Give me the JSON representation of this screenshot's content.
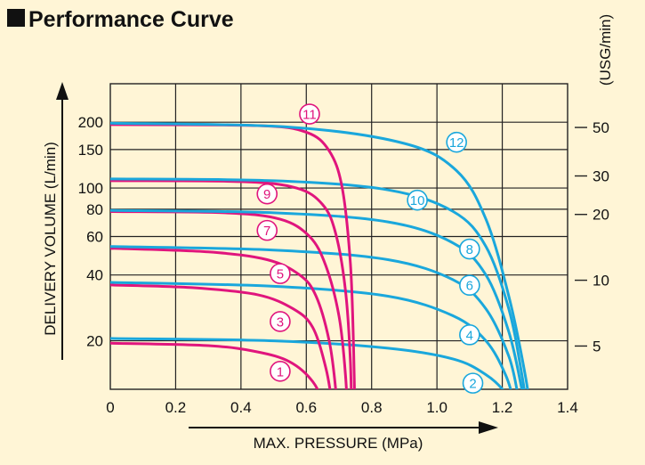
{
  "title": "Performance Curve",
  "chart_data": {
    "type": "line",
    "title": "Performance Curve",
    "xlabel": "MAX. PRESSURE (MPa)",
    "ylabel": "DELIVERY VOLUME (L/min)",
    "ylabel_right": "(USG/min)",
    "xlim": [
      0,
      1.4
    ],
    "ylim": [
      12,
      300
    ],
    "y_scale": "log",
    "grid": true,
    "x_ticks": [
      "0",
      "0.2",
      "0.4",
      "0.6",
      "0.8",
      "1.0",
      "1.2",
      "1.4"
    ],
    "y_ticks": [
      "20",
      "40",
      "60",
      "80",
      "100",
      "150",
      "200"
    ],
    "y_ticks_right": [
      "5",
      "10",
      "20",
      "30",
      "50"
    ],
    "colors": {
      "odd": "#e0157d",
      "even": "#1aa7dc",
      "grid": "#222222",
      "background": "#fff5d6"
    },
    "series": [
      {
        "name": "1",
        "color": "#e0157d",
        "x": [
          0,
          0.3,
          0.45,
          0.55,
          0.62,
          0.655,
          0.67,
          0.675
        ],
        "y": [
          19.5,
          19,
          17.8,
          16,
          13,
          10,
          8,
          7
        ]
      },
      {
        "name": "2",
        "color": "#1aa7dc",
        "x": [
          0,
          0.5,
          0.85,
          1.05,
          1.15,
          1.21,
          1.24,
          1.26
        ],
        "y": [
          20.5,
          20,
          18.5,
          16.5,
          14,
          11.5,
          9,
          7
        ]
      },
      {
        "name": "3",
        "color": "#e0157d",
        "x": [
          0,
          0.25,
          0.45,
          0.56,
          0.62,
          0.66,
          0.68,
          0.69
        ],
        "y": [
          36,
          35,
          32.5,
          28,
          23,
          15,
          10,
          7
        ]
      },
      {
        "name": "4",
        "color": "#1aa7dc",
        "x": [
          0,
          0.5,
          0.85,
          1.05,
          1.15,
          1.21,
          1.24,
          1.27
        ],
        "y": [
          37,
          35.5,
          32,
          26,
          20,
          14,
          10,
          7
        ]
      },
      {
        "name": "5",
        "color": "#e0157d",
        "x": [
          0,
          0.3,
          0.48,
          0.58,
          0.63,
          0.67,
          0.69,
          0.7
        ],
        "y": [
          53,
          51,
          47,
          40,
          32,
          20,
          12,
          7
        ]
      },
      {
        "name": "6",
        "color": "#1aa7dc",
        "x": [
          0,
          0.5,
          0.85,
          1.05,
          1.15,
          1.22,
          1.25,
          1.28
        ],
        "y": [
          54,
          52,
          47,
          38,
          28,
          17,
          11,
          7
        ]
      },
      {
        "name": "7",
        "color": "#e0157d",
        "x": [
          0,
          0.35,
          0.52,
          0.61,
          0.66,
          0.7,
          0.72,
          0.73
        ],
        "y": [
          78,
          77,
          72,
          60,
          44,
          26,
          14,
          7
        ]
      },
      {
        "name": "8",
        "color": "#1aa7dc",
        "x": [
          0,
          0.5,
          0.85,
          1.05,
          1.15,
          1.22,
          1.26,
          1.29
        ],
        "y": [
          79,
          77,
          70,
          56,
          40,
          22,
          12,
          7
        ]
      },
      {
        "name": "9",
        "color": "#e0157d",
        "x": [
          0,
          0.4,
          0.57,
          0.65,
          0.69,
          0.72,
          0.735,
          0.74
        ],
        "y": [
          108,
          107,
          100,
          84,
          62,
          34,
          16,
          7
        ]
      },
      {
        "name": "10",
        "color": "#1aa7dc",
        "x": [
          0,
          0.5,
          0.85,
          1.05,
          1.15,
          1.22,
          1.26,
          1.29
        ],
        "y": [
          110,
          108,
          98,
          78,
          54,
          28,
          14,
          7
        ]
      },
      {
        "name": "11",
        "color": "#e0157d",
        "x": [
          0,
          0.45,
          0.6,
          0.67,
          0.71,
          0.735,
          0.745,
          0.75
        ],
        "y": [
          195,
          193,
          180,
          148,
          100,
          45,
          18,
          7
        ]
      },
      {
        "name": "12",
        "color": "#1aa7dc",
        "x": [
          0,
          0.55,
          0.9,
          1.06,
          1.15,
          1.22,
          1.27,
          1.3
        ],
        "y": [
          198,
          190,
          160,
          120,
          72,
          32,
          14,
          7
        ]
      }
    ],
    "curve_labels": [
      {
        "text": "1",
        "x": 0.52,
        "y": 14.5
      },
      {
        "text": "2",
        "x": 1.11,
        "y": 12.8
      },
      {
        "text": "3",
        "x": 0.52,
        "y": 24.5
      },
      {
        "text": "4",
        "x": 1.1,
        "y": 21.3
      },
      {
        "text": "5",
        "x": 0.52,
        "y": 40.6
      },
      {
        "text": "6",
        "x": 1.1,
        "y": 35.9
      },
      {
        "text": "7",
        "x": 0.48,
        "y": 64
      },
      {
        "text": "8",
        "x": 1.1,
        "y": 52.6
      },
      {
        "text": "9",
        "x": 0.48,
        "y": 94
      },
      {
        "text": "10",
        "x": 0.94,
        "y": 88
      },
      {
        "text": "11",
        "x": 0.61,
        "y": 218
      },
      {
        "text": "12",
        "x": 1.06,
        "y": 162
      }
    ]
  }
}
